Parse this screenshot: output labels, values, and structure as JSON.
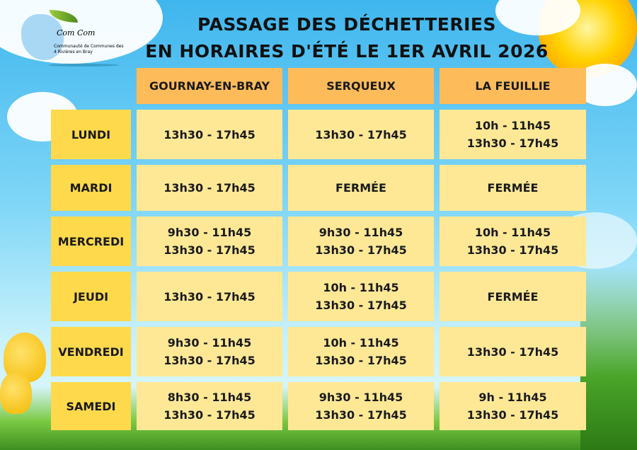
{
  "logo": {
    "brand": "Com Com",
    "name": "Communauté de Communes des 4 Rivières en Bray"
  },
  "title": {
    "line1": "PASSAGE DES DÉCHETTERIES",
    "line2": "EN HORAIRES D'ÉTÉ LE 1ER AVRIL 2026"
  },
  "colors": {
    "header": "#fdbb5a",
    "day": "#fed94b",
    "value": "#fee895"
  },
  "columns": [
    "GOURNAY-EN-BRAY",
    "SERQUEUX",
    "LA FEUILLIE"
  ],
  "rows": [
    {
      "day": "LUNDI",
      "cells": [
        [
          "13h30 - 17h45"
        ],
        [
          "13h30 - 17h45"
        ],
        [
          "10h - 11h45",
          "13h30 - 17h45"
        ]
      ]
    },
    {
      "day": "MARDI",
      "cells": [
        [
          "13h30 - 17h45"
        ],
        [
          "FERMÉE"
        ],
        [
          "FERMÉE"
        ]
      ]
    },
    {
      "day": "MERCREDI",
      "cells": [
        [
          "9h30 - 11h45",
          "13h30 - 17h45"
        ],
        [
          "9h30 - 11h45",
          "13h30 - 17h45"
        ],
        [
          "10h - 11h45",
          "13h30 - 17h45"
        ]
      ]
    },
    {
      "day": "JEUDI",
      "cells": [
        [
          "13h30 - 17h45"
        ],
        [
          "10h - 11h45",
          "13h30 - 17h45"
        ],
        [
          "FERMÉE"
        ]
      ]
    },
    {
      "day": "VENDREDI",
      "cells": [
        [
          "9h30 - 11h45",
          "13h30 - 17h45"
        ],
        [
          "10h - 11h45",
          "13h30 - 17h45"
        ],
        [
          "13h30 - 17h45"
        ]
      ]
    },
    {
      "day": "SAMEDI",
      "cells": [
        [
          "8h30 - 11h45",
          "13h30 - 17h45"
        ],
        [
          "9h30 - 11h45",
          "13h30 - 17h45"
        ],
        [
          "9h - 11h45",
          "13h30 - 17h45"
        ]
      ]
    }
  ]
}
